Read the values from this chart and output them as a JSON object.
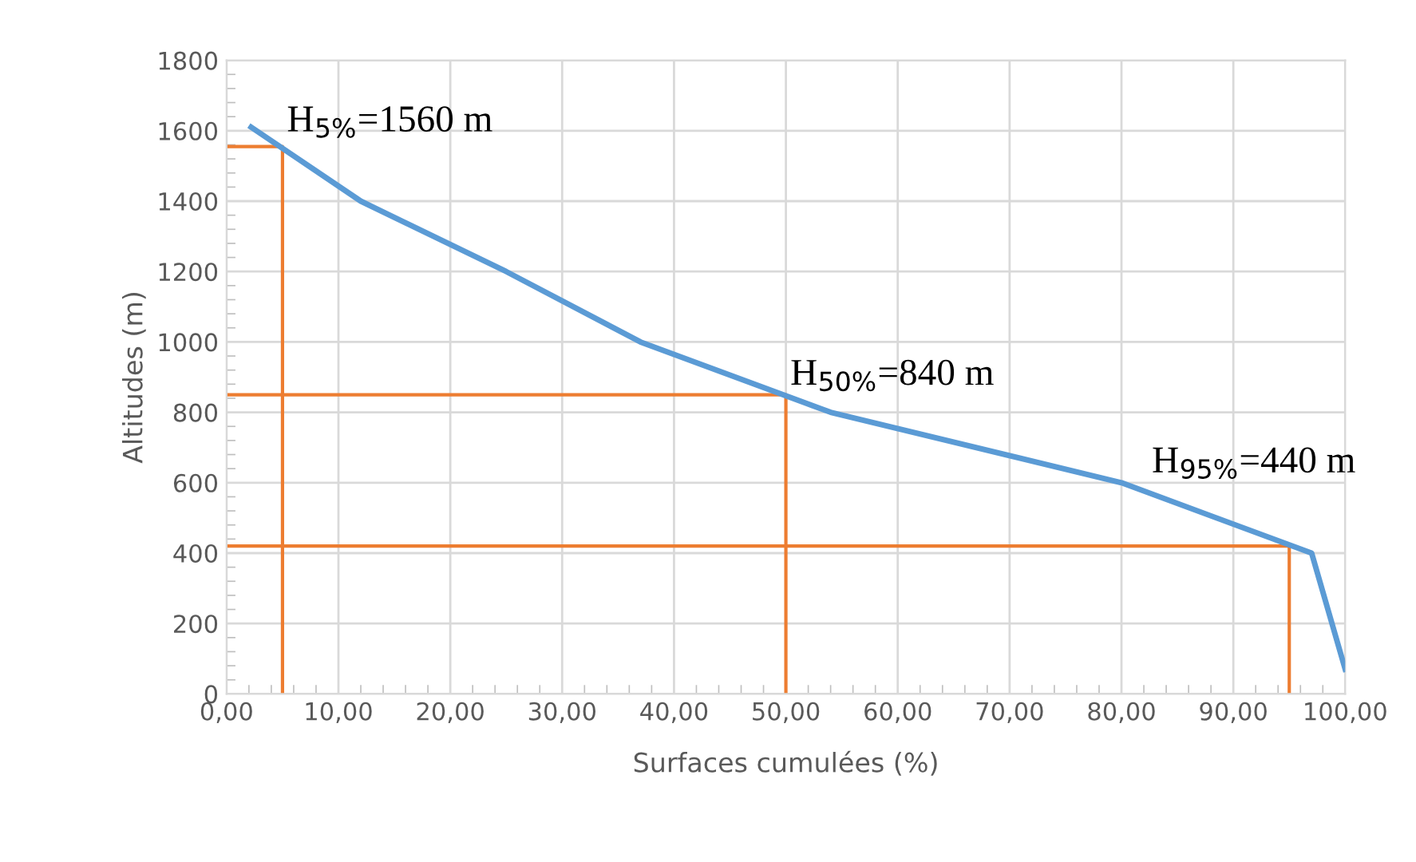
{
  "chart_data": {
    "type": "line",
    "xlabel": "Surfaces cumulées (%)",
    "ylabel": "Altitudes (m)",
    "xlim": [
      0,
      100
    ],
    "ylim": [
      0,
      1800
    ],
    "xticks": [
      {
        "value": 0,
        "label": "0,00"
      },
      {
        "value": 10,
        "label": "10,00"
      },
      {
        "value": 20,
        "label": "20,00"
      },
      {
        "value": 30,
        "label": "30,00"
      },
      {
        "value": 40,
        "label": "40,00"
      },
      {
        "value": 50,
        "label": "50,00"
      },
      {
        "value": 60,
        "label": "60,00"
      },
      {
        "value": 70,
        "label": "70,00"
      },
      {
        "value": 80,
        "label": "80,00"
      },
      {
        "value": 90,
        "label": "90,00"
      },
      {
        "value": 100,
        "label": "100,00"
      }
    ],
    "yticks": [
      0,
      200,
      400,
      600,
      800,
      1000,
      1200,
      1400,
      1600,
      1800
    ],
    "grid": true,
    "marker": "none",
    "series": [
      {
        "color": "#5b9bd5",
        "x": [
          2.2,
          12,
          25,
          37,
          54,
          80,
          97,
          100
        ],
        "values": [
          1610,
          1400,
          1200,
          1000,
          800,
          600,
          400,
          70
        ]
      },
      {
        "color": "#ed7d31",
        "x": [
          0,
          5,
          5
        ],
        "values": [
          1555,
          1555,
          0
        ]
      },
      {
        "color": "#ed7d31",
        "x": [
          0,
          50,
          50
        ],
        "values": [
          850,
          850,
          0
        ]
      },
      {
        "color": "#ed7d31",
        "x": [
          0,
          95,
          95
        ],
        "values": [
          420,
          420,
          0
        ]
      }
    ],
    "annotations": [
      {
        "text": "H$_{5%}$=1560 m",
        "x": 5,
        "y": 1560
      },
      {
        "text": "H$_{50%}$=840 m",
        "x": 50,
        "y": 840
      },
      {
        "text": "H$_{95%}$=440 m",
        "x": 95,
        "y": 440
      }
    ]
  }
}
